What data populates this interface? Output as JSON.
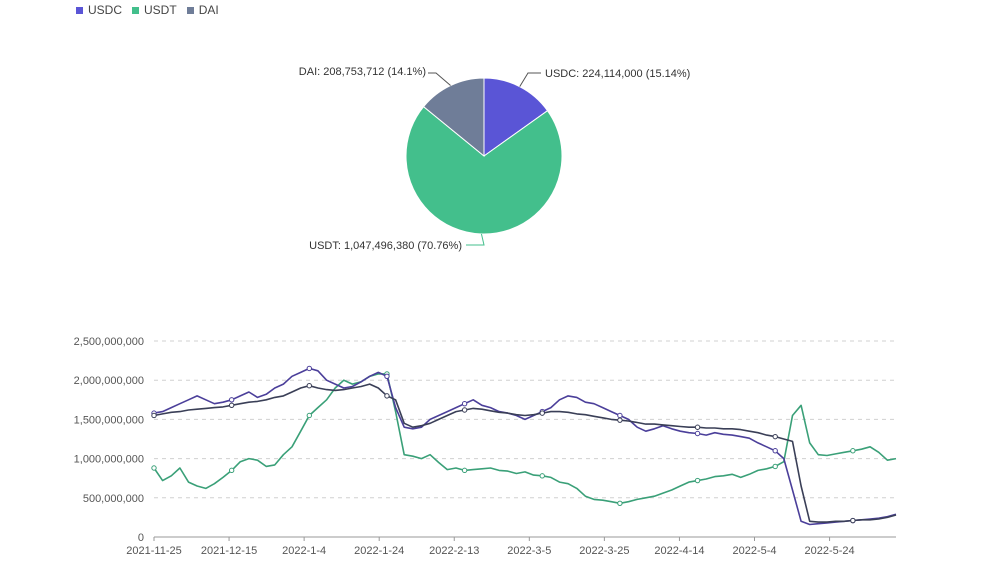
{
  "colors": {
    "USDC": "#5a55d6",
    "USDT": "#43bf8c",
    "DAI": "#6f7d98",
    "line_USDC": "#4b3f9a",
    "line_USDT": "#3aa078",
    "line_DAI": "#3a3f57"
  },
  "chart_data": [
    {
      "type": "pie",
      "slices": [
        {
          "name": "USDC",
          "value": 224114000,
          "percent": 15.14,
          "label": "USDC: 224,114,000 (15.14%)"
        },
        {
          "name": "USDT",
          "value": 1047496380,
          "percent": 70.76,
          "label": "USDT: 1,047,496,380 (70.76%)"
        },
        {
          "name": "DAI",
          "value": 208753712,
          "percent": 14.1,
          "label": "DAI: 208,753,712 (14.1%)"
        }
      ],
      "legend": [
        "USDC",
        "USDT",
        "DAI"
      ],
      "legend_placement": "top-left"
    },
    {
      "type": "line",
      "x_tick_labels": [
        "2021-11-25",
        "2021-12-15",
        "2022-1-4",
        "2022-1-24",
        "2022-2-13",
        "2022-3-5",
        "2022-3-25",
        "2022-4-14",
        "2022-5-4",
        "2022-5-24"
      ],
      "y_tick_labels": [
        "0",
        "500,000,000",
        "1,000,000,000",
        "1,500,000,000",
        "2,000,000,000",
        "2,500,000,000"
      ],
      "ylim": [
        0,
        2500000000
      ],
      "grid": true,
      "series": [
        {
          "name": "USDT",
          "values": [
            880000000,
            720000000,
            780000000,
            880000000,
            700000000,
            650000000,
            620000000,
            680000000,
            760000000,
            850000000,
            960000000,
            1000000000,
            980000000,
            900000000,
            920000000,
            1050000000,
            1150000000,
            1350000000,
            1550000000,
            1650000000,
            1750000000,
            1900000000,
            2000000000,
            1950000000,
            1980000000,
            2050000000,
            2080000000,
            2080000000,
            1600000000,
            1050000000,
            1030000000,
            1000000000,
            1050000000,
            950000000,
            860000000,
            880000000,
            850000000,
            860000000,
            870000000,
            880000000,
            850000000,
            840000000,
            810000000,
            830000000,
            790000000,
            780000000,
            760000000,
            700000000,
            680000000,
            620000000,
            520000000,
            480000000,
            470000000,
            450000000,
            430000000,
            450000000,
            480000000,
            500000000,
            520000000,
            560000000,
            600000000,
            650000000,
            700000000,
            720000000,
            740000000,
            770000000,
            780000000,
            800000000,
            760000000,
            800000000,
            850000000,
            870000000,
            900000000,
            960000000,
            1550000000,
            1680000000,
            1200000000,
            1050000000,
            1040000000,
            1060000000,
            1080000000,
            1100000000,
            1120000000,
            1150000000,
            1080000000,
            980000000,
            1000000000
          ]
        },
        {
          "name": "USDC",
          "values": [
            1580000000,
            1600000000,
            1650000000,
            1700000000,
            1750000000,
            1800000000,
            1750000000,
            1700000000,
            1720000000,
            1750000000,
            1800000000,
            1850000000,
            1780000000,
            1820000000,
            1900000000,
            1950000000,
            2050000000,
            2100000000,
            2150000000,
            2120000000,
            2000000000,
            1950000000,
            1900000000,
            1920000000,
            1980000000,
            2050000000,
            2100000000,
            2050000000,
            1650000000,
            1400000000,
            1380000000,
            1400000000,
            1500000000,
            1550000000,
            1600000000,
            1650000000,
            1700000000,
            1750000000,
            1680000000,
            1650000000,
            1600000000,
            1580000000,
            1550000000,
            1500000000,
            1550000000,
            1600000000,
            1650000000,
            1750000000,
            1800000000,
            1780000000,
            1720000000,
            1700000000,
            1650000000,
            1600000000,
            1550000000,
            1500000000,
            1400000000,
            1350000000,
            1380000000,
            1420000000,
            1380000000,
            1350000000,
            1330000000,
            1320000000,
            1300000000,
            1330000000,
            1310000000,
            1300000000,
            1280000000,
            1260000000,
            1200000000,
            1150000000,
            1100000000,
            1000000000,
            600000000,
            200000000,
            160000000,
            170000000,
            180000000,
            190000000,
            200000000,
            210000000,
            220000000,
            230000000,
            240000000,
            260000000,
            290000000
          ]
        },
        {
          "name": "DAI",
          "values": [
            1550000000,
            1570000000,
            1590000000,
            1600000000,
            1620000000,
            1630000000,
            1640000000,
            1650000000,
            1660000000,
            1680000000,
            1700000000,
            1720000000,
            1730000000,
            1750000000,
            1780000000,
            1800000000,
            1850000000,
            1900000000,
            1930000000,
            1900000000,
            1880000000,
            1870000000,
            1880000000,
            1900000000,
            1920000000,
            1950000000,
            1900000000,
            1800000000,
            1750000000,
            1450000000,
            1400000000,
            1420000000,
            1450000000,
            1500000000,
            1550000000,
            1600000000,
            1620000000,
            1640000000,
            1630000000,
            1610000000,
            1590000000,
            1580000000,
            1560000000,
            1550000000,
            1560000000,
            1580000000,
            1600000000,
            1600000000,
            1590000000,
            1570000000,
            1560000000,
            1540000000,
            1520000000,
            1500000000,
            1490000000,
            1480000000,
            1460000000,
            1440000000,
            1440000000,
            1430000000,
            1420000000,
            1410000000,
            1400000000,
            1400000000,
            1390000000,
            1390000000,
            1380000000,
            1380000000,
            1370000000,
            1350000000,
            1330000000,
            1300000000,
            1280000000,
            1250000000,
            1220000000,
            650000000,
            200000000,
            190000000,
            190000000,
            200000000,
            200000000,
            210000000,
            220000000,
            220000000,
            230000000,
            250000000,
            280000000
          ]
        }
      ]
    }
  ]
}
